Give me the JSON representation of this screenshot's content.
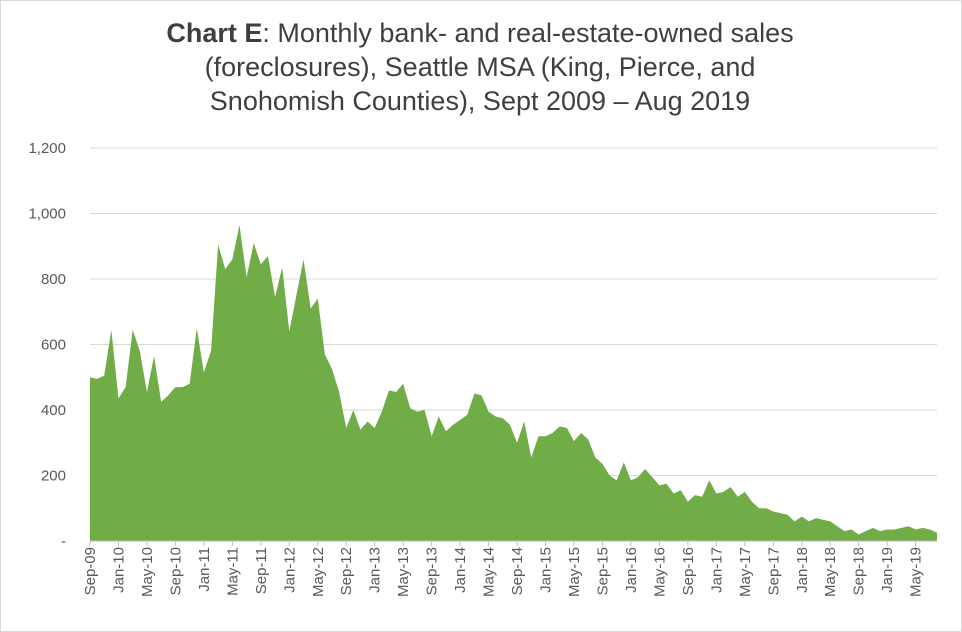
{
  "chart_data": {
    "type": "area",
    "title_bold": "Chart E",
    "title": ": Monthly bank- and real-estate-owned sales (foreclosures), Seattle MSA (King, Pierce, and Snohomish Counties), Sept 2009 – Aug 2019",
    "title_lines": [
      ": Monthly bank- and real-estate-owned sales",
      "(foreclosures), Seattle MSA (King, Pierce, and",
      "Snohomish Counties), Sept 2009 – Aug 2019"
    ],
    "xlabel": "",
    "ylabel": "",
    "ylim": [
      0,
      1200
    ],
    "grid": true,
    "legend": "none",
    "color": "#70ad47",
    "y_ticks": [
      {
        "value": 0,
        "label": "-"
      },
      {
        "value": 200,
        "label": "200"
      },
      {
        "value": 400,
        "label": "400"
      },
      {
        "value": 600,
        "label": "600"
      },
      {
        "value": 800,
        "label": "800"
      },
      {
        "value": 1000,
        "label": "1,000"
      },
      {
        "value": 1200,
        "label": "1,200"
      }
    ],
    "x_ticks": [
      {
        "index": 0,
        "label": "Sep-09"
      },
      {
        "index": 4,
        "label": "Jan-10"
      },
      {
        "index": 8,
        "label": "May-10"
      },
      {
        "index": 12,
        "label": "Sep-10"
      },
      {
        "index": 16,
        "label": "Jan-11"
      },
      {
        "index": 20,
        "label": "May-11"
      },
      {
        "index": 24,
        "label": "Sep-11"
      },
      {
        "index": 28,
        "label": "Jan-12"
      },
      {
        "index": 32,
        "label": "May-12"
      },
      {
        "index": 36,
        "label": "Sep-12"
      },
      {
        "index": 40,
        "label": "Jan-13"
      },
      {
        "index": 44,
        "label": "May-13"
      },
      {
        "index": 48,
        "label": "Sep-13"
      },
      {
        "index": 52,
        "label": "Jan-14"
      },
      {
        "index": 56,
        "label": "May-14"
      },
      {
        "index": 60,
        "label": "Sep-14"
      },
      {
        "index": 64,
        "label": "Jan-15"
      },
      {
        "index": 68,
        "label": "May-15"
      },
      {
        "index": 72,
        "label": "Sep-15"
      },
      {
        "index": 76,
        "label": "Jan-16"
      },
      {
        "index": 80,
        "label": "May-16"
      },
      {
        "index": 84,
        "label": "Sep-16"
      },
      {
        "index": 88,
        "label": "Jan-17"
      },
      {
        "index": 92,
        "label": "May-17"
      },
      {
        "index": 96,
        "label": "Sep-17"
      },
      {
        "index": 100,
        "label": "Jan-18"
      },
      {
        "index": 104,
        "label": "May-18"
      },
      {
        "index": 108,
        "label": "Sep-18"
      },
      {
        "index": 112,
        "label": "Jan-19"
      },
      {
        "index": 116,
        "label": "May-19"
      }
    ],
    "values": [
      500,
      495,
      505,
      645,
      435,
      470,
      645,
      580,
      455,
      565,
      425,
      445,
      470,
      470,
      480,
      650,
      515,
      580,
      905,
      830,
      860,
      965,
      805,
      910,
      845,
      870,
      745,
      835,
      640,
      750,
      860,
      710,
      740,
      570,
      525,
      455,
      345,
      400,
      340,
      365,
      345,
      395,
      460,
      455,
      480,
      405,
      395,
      400,
      320,
      380,
      335,
      355,
      370,
      385,
      450,
      445,
      395,
      380,
      375,
      355,
      300,
      365,
      255,
      320,
      320,
      330,
      350,
      345,
      305,
      330,
      310,
      255,
      235,
      200,
      185,
      240,
      185,
      195,
      220,
      195,
      170,
      175,
      145,
      155,
      120,
      140,
      135,
      185,
      145,
      150,
      165,
      135,
      150,
      120,
      100,
      100,
      90,
      85,
      80,
      60,
      75,
      60,
      70,
      65,
      60,
      45,
      30,
      35,
      20,
      30,
      40,
      30,
      35,
      35,
      40,
      45,
      35,
      40,
      35,
      25
    ]
  }
}
